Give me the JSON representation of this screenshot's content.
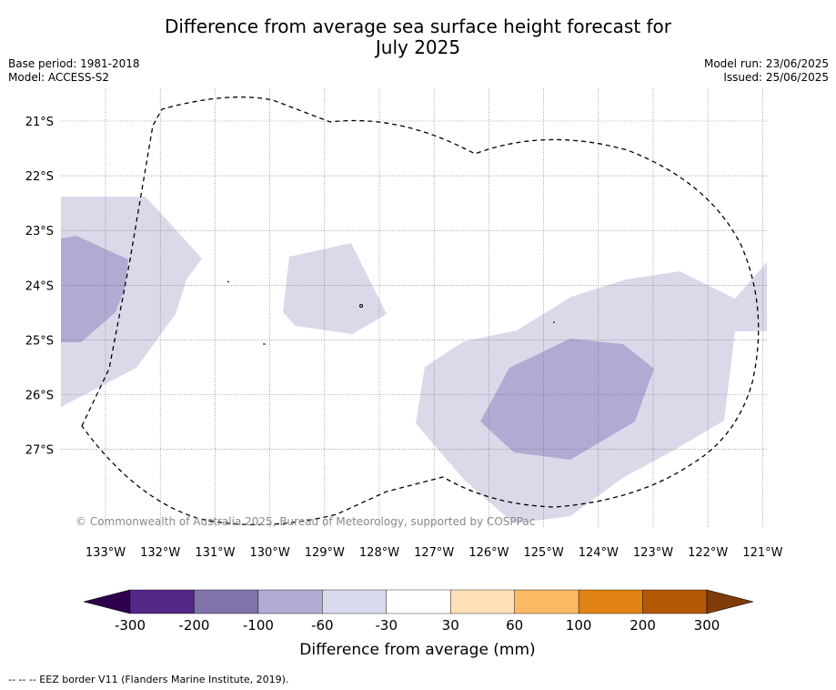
{
  "title": "Difference from average sea surface height forecast for July 2025",
  "title_line1": "Difference from average sea surface height forecast for",
  "title_line2": "July 2025",
  "meta_left": {
    "base_period": "Base period: 1981-2018",
    "model": "Model: ACCESS-S2"
  },
  "meta_right": {
    "model_run": "Model run: 23/06/2025",
    "issued": "Issued: 25/06/2025"
  },
  "map": {
    "lon_labels": [
      "133°W",
      "132°W",
      "131°W",
      "130°W",
      "129°W",
      "128°W",
      "127°W",
      "126°W",
      "125°W",
      "124°W",
      "123°W",
      "122°W",
      "121°W"
    ],
    "lat_labels": [
      "21°S",
      "22°S",
      "23°S",
      "24°S",
      "25°S",
      "26°S",
      "27°S"
    ],
    "copyright": "© Commonwealth of Australia 2025, Bureau of Meteorology, supported by COSPPac",
    "colors": {
      "band_-60_-30": "#d9d9ea",
      "band_-100_-60": "#b1aad2",
      "eez_line": "#000000"
    }
  },
  "colorbar": {
    "title": "Difference from average (mm)",
    "labels": [
      "-300",
      "-200",
      "-100",
      "-60",
      "-30",
      "30",
      "60",
      "100",
      "200",
      "300"
    ],
    "colors": [
      "#2d004b",
      "#542788",
      "#8073ac",
      "#b2abd2",
      "#d8daeb",
      "#ffffff",
      "#fee0b6",
      "#fdb863",
      "#e08214",
      "#b35806",
      "#7f3b08"
    ]
  },
  "footnote": "--  --  -- EEZ border V11 (Flanders Marine Institute, 2019)."
}
